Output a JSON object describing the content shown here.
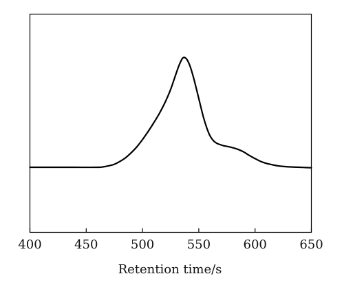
{
  "chart_data": {
    "type": "line",
    "title": "",
    "xlabel": "Retention time/s",
    "ylabel": "",
    "xlim": [
      400,
      650
    ],
    "ylim": [
      0,
      1
    ],
    "grid": false,
    "legend": "none",
    "x_ticks": [
      400,
      450,
      500,
      550,
      600,
      650
    ],
    "x_tick_labels": [
      "400",
      "450",
      "500",
      "550",
      "600",
      "650"
    ],
    "series": [
      {
        "color": "#000000",
        "x": [
          400,
          420,
          440,
          460,
          465,
          470,
          475,
          480,
          485,
          490,
          495,
          500,
          505,
          510,
          515,
          520,
          525,
          530,
          533,
          536,
          539,
          542,
          545,
          548,
          551,
          554,
          557,
          560,
          563,
          566,
          569,
          572,
          576,
          580,
          585,
          590,
          595,
          600,
          605,
          610,
          615,
          620,
          625,
          630,
          635,
          640,
          645,
          650
        ],
        "y": [
          0.298,
          0.298,
          0.298,
          0.298,
          0.3,
          0.305,
          0.312,
          0.325,
          0.342,
          0.365,
          0.392,
          0.425,
          0.462,
          0.502,
          0.545,
          0.595,
          0.655,
          0.73,
          0.772,
          0.8,
          0.795,
          0.765,
          0.715,
          0.655,
          0.592,
          0.53,
          0.48,
          0.442,
          0.42,
          0.408,
          0.402,
          0.397,
          0.393,
          0.388,
          0.38,
          0.368,
          0.352,
          0.338,
          0.325,
          0.316,
          0.31,
          0.305,
          0.302,
          0.3,
          0.299,
          0.298,
          0.297,
          0.296
        ]
      }
    ]
  }
}
